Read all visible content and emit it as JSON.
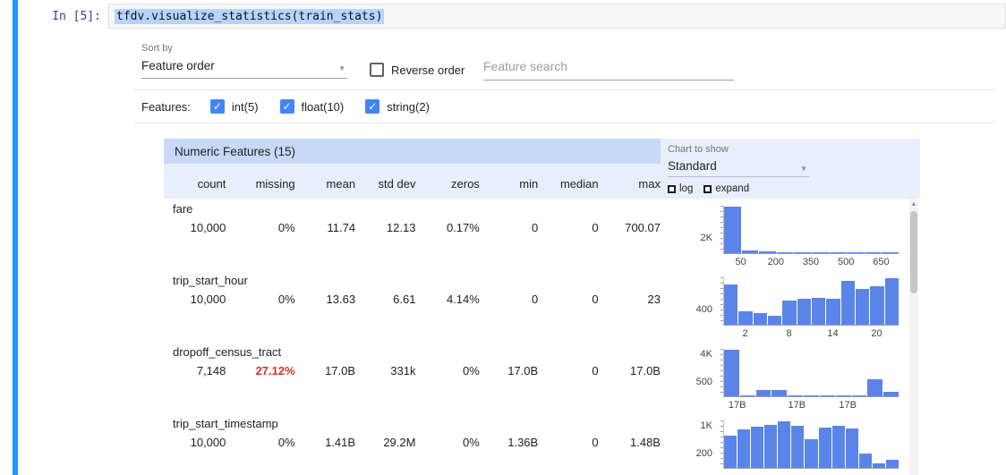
{
  "notebook": {
    "prompt": "In [5]:",
    "code": "tfdv.visualize_statistics(train_stats)"
  },
  "controls": {
    "sort_by_label": "Sort by",
    "sort_by_value": "Feature order",
    "reverse_order_label": "Reverse order",
    "reverse_order_checked": false,
    "feature_search_placeholder": "Feature search",
    "features_label": "Features:",
    "feature_filters": [
      {
        "label": "int(5)",
        "checked": true
      },
      {
        "label": "float(10)",
        "checked": true
      },
      {
        "label": "string(2)",
        "checked": true
      }
    ]
  },
  "table": {
    "title": "Numeric Features (15)",
    "columns": [
      "count",
      "missing",
      "mean",
      "std dev",
      "zeros",
      "min",
      "median",
      "max"
    ],
    "rows": [
      {
        "name": "fare",
        "values": [
          "10,000",
          "0%",
          "11.74",
          "12.13",
          "0.17%",
          "0",
          "0",
          "700.07"
        ],
        "missing_alert": false
      },
      {
        "name": "trip_start_hour",
        "values": [
          "10,000",
          "0%",
          "13.63",
          "6.61",
          "4.14%",
          "0",
          "0",
          "23"
        ],
        "missing_alert": false
      },
      {
        "name": "dropoff_census_tract",
        "values": [
          "7,148",
          "27.12%",
          "17.0B",
          "331k",
          "0%",
          "17.0B",
          "0",
          "17.0B"
        ],
        "missing_alert": true
      },
      {
        "name": "trip_start_timestamp",
        "values": [
          "10,000",
          "0%",
          "1.41B",
          "29.2M",
          "0%",
          "1.36B",
          "0",
          "1.48B"
        ],
        "missing_alert": false
      }
    ]
  },
  "chart_panel": {
    "label": "Chart to show",
    "value": "Standard",
    "log_label": "log",
    "log_checked": false,
    "expand_label": "expand",
    "expand_checked": false
  },
  "chart_data": [
    {
      "type": "bar",
      "feature": "fare",
      "title": "fare histogram",
      "y_ticks": [
        "2K"
      ],
      "x_ticks": [
        "50",
        "200",
        "350",
        "500",
        "650"
      ],
      "values": [
        2400,
        150,
        70,
        40,
        25,
        18,
        12,
        8,
        5,
        4
      ]
    },
    {
      "type": "bar",
      "feature": "trip_start_hour",
      "title": "trip_start_hour histogram",
      "y_ticks": [
        "400"
      ],
      "x_ticks": [
        "2",
        "8",
        "14",
        "20"
      ],
      "values": [
        520,
        170,
        150,
        120,
        310,
        330,
        350,
        330,
        560,
        460,
        500,
        600
      ]
    },
    {
      "type": "bar",
      "feature": "dropoff_census_tract",
      "title": "dropoff_census_tract histogram",
      "y_ticks": [
        "4K",
        "500"
      ],
      "x_ticks": [
        "17B",
        "17B",
        "17B"
      ],
      "x_tick_pos": [
        0.08,
        0.42,
        0.71
      ],
      "values": [
        4200,
        60,
        540,
        600,
        70,
        40,
        28,
        18,
        10,
        1500,
        420
      ]
    },
    {
      "type": "bar",
      "feature": "trip_start_timestamp",
      "title": "trip_start_timestamp histogram",
      "y_ticks": [
        "1K",
        "200"
      ],
      "x_ticks": [],
      "values": [
        700,
        820,
        880,
        930,
        1000,
        900,
        620,
        870,
        900,
        840,
        310,
        100,
        180
      ]
    }
  ],
  "colors": {
    "jupyter_blue": "#2196f3",
    "prompt_blue": "#303f9f",
    "selection": "#b4d5fe",
    "accent": "#4285f4",
    "header_blue": "#c8d9f7",
    "subheader_blue": "#e8effa",
    "bar_blue": "#5b84ea",
    "alert_red": "#d93025"
  }
}
